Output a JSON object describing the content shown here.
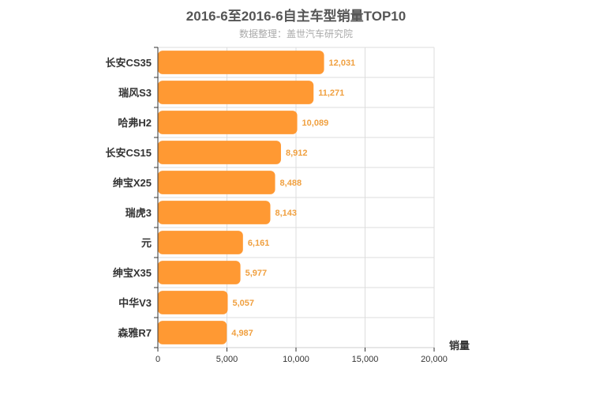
{
  "chart_data": {
    "type": "bar",
    "orientation": "horizontal",
    "title": "2016-6至2016-6自主车型销量TOP10",
    "subtitle": "数据整理：盖世汽车研究院",
    "categories": [
      "长安CS35",
      "瑞风S3",
      "哈弗H2",
      "长安CS15",
      "绅宝X25",
      "瑞虎3",
      "元",
      "绅宝X35",
      "中华V3",
      "森雅R7"
    ],
    "values": [
      12031,
      11271,
      10089,
      8912,
      8488,
      8143,
      6161,
      5977,
      5057,
      4987
    ],
    "value_labels": [
      "12,031",
      "11,271",
      "10,089",
      "8,912",
      "8,488",
      "8,143",
      "6,161",
      "5,977",
      "5,057",
      "4,987"
    ],
    "xlabel": "销量",
    "ylabel": "",
    "xlim": [
      0,
      20000
    ],
    "xticks": [
      0,
      5000,
      10000,
      15000,
      20000
    ],
    "xtick_labels": [
      "0",
      "5,000",
      "10,000",
      "15,000",
      "20,000"
    ],
    "grid": true,
    "colors": {
      "bar": "#ff9933",
      "value_label": "#f0a040",
      "grid": "#dddddd",
      "axis": "#333333"
    }
  }
}
